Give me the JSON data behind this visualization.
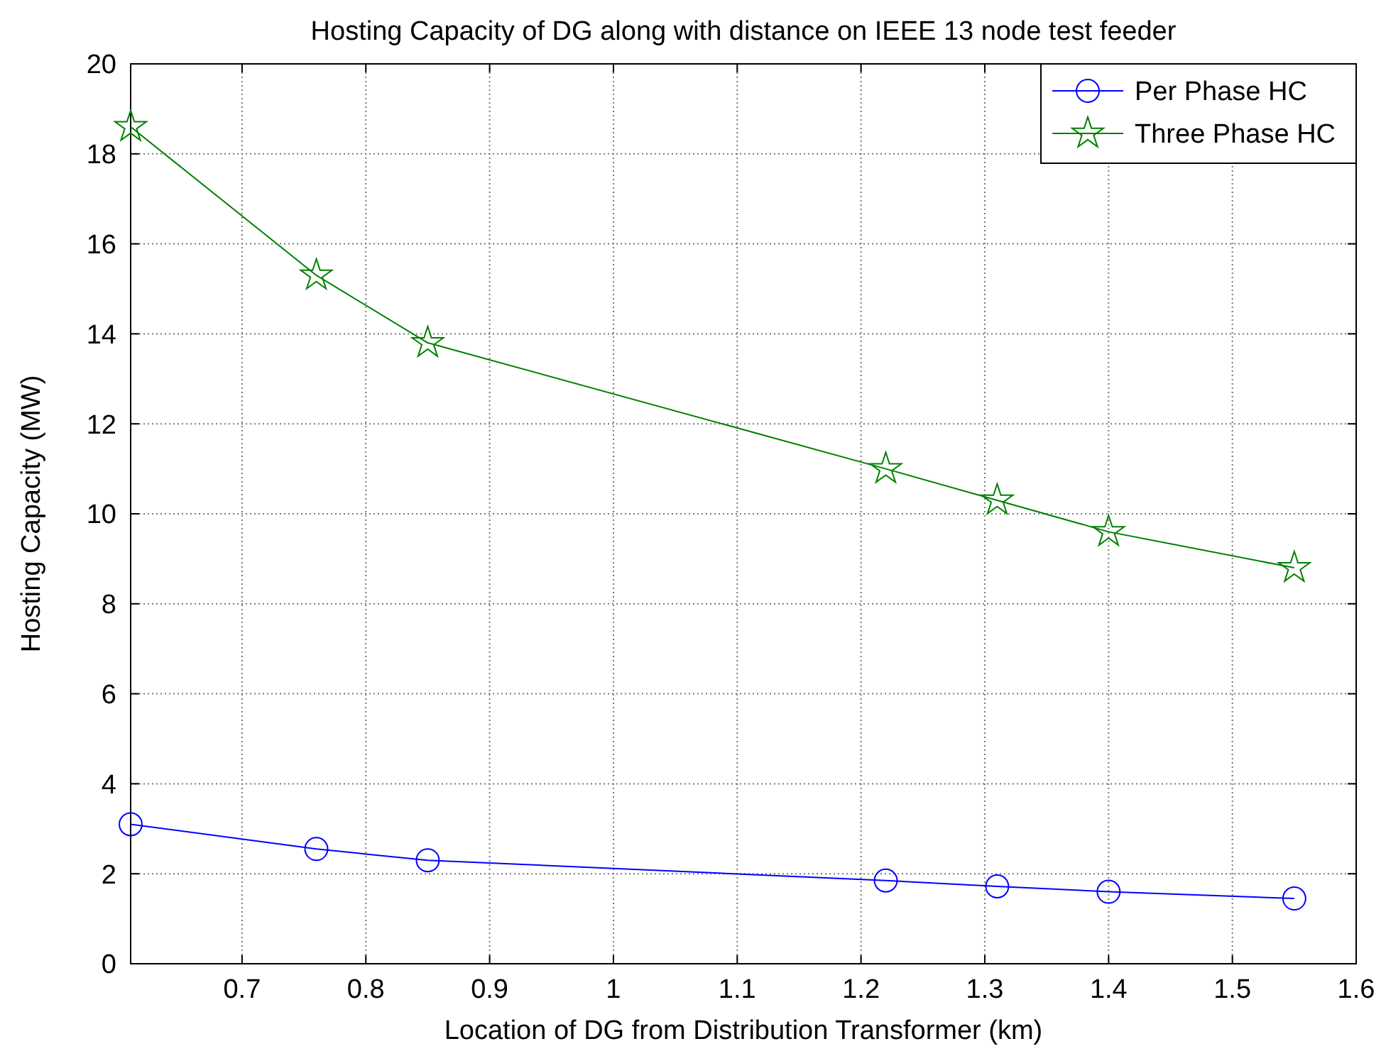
{
  "chart_data": {
    "type": "line",
    "title": "Hosting Capacity of DG along with distance on IEEE 13 node test feeder",
    "xlabel": "Location of DG from Distribution Transformer (km)",
    "ylabel": "Hosting Capacity (MW)",
    "x": [
      0.61,
      0.76,
      0.85,
      1.22,
      1.31,
      1.4,
      1.55
    ],
    "series": [
      {
        "name": "Per Phase HC",
        "color": "#0000ff",
        "marker": "circle",
        "values": [
          3.1,
          2.55,
          2.3,
          1.85,
          1.72,
          1.6,
          1.45
        ]
      },
      {
        "name": "Three Phase HC",
        "color": "#008000",
        "marker": "star",
        "values": [
          18.6,
          15.3,
          13.8,
          11.0,
          10.3,
          9.6,
          8.8
        ]
      }
    ],
    "xlim": [
      0.61,
      1.6
    ],
    "xticks": [
      0.7,
      0.8,
      0.9,
      1,
      1.1,
      1.2,
      1.3,
      1.4,
      1.5,
      1.6
    ],
    "ylim": [
      0,
      20
    ],
    "yticks": [
      0,
      2,
      4,
      6,
      8,
      10,
      12,
      14,
      16,
      18,
      20
    ],
    "grid": true,
    "legend": "top right",
    "line_style": "solid"
  }
}
